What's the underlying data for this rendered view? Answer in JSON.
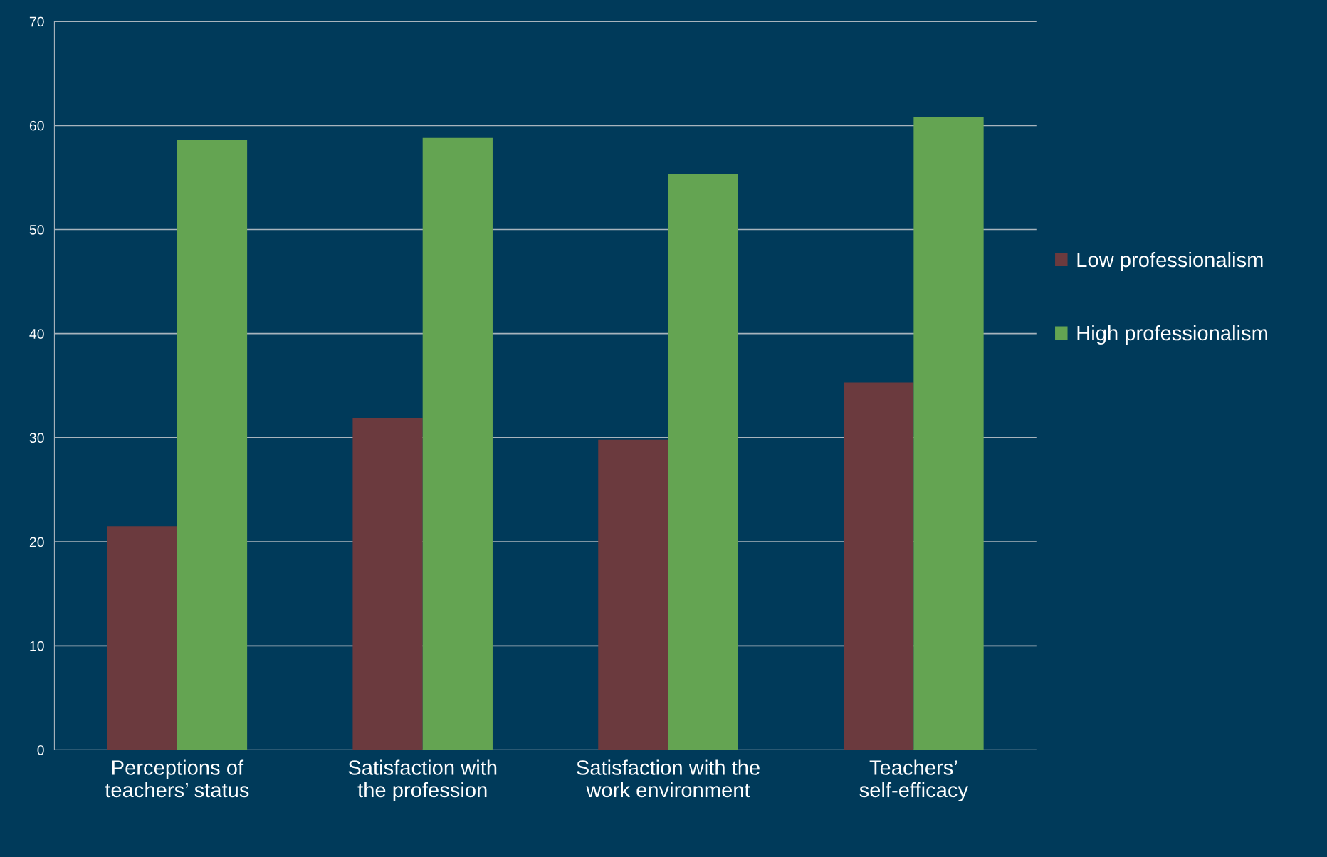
{
  "chart_data": {
    "type": "bar",
    "categories": [
      "Perceptions of\nteachers’ status",
      "Satisfaction with\nthe profession",
      "Satisfaction with the\nwork environment",
      "Teachers’\nself-efficacy"
    ],
    "series": [
      {
        "name": "Low professionalism",
        "color": "#6b3a3e",
        "values": [
          21.5,
          31.9,
          29.8,
          35.3
        ]
      },
      {
        "name": "High professionalism",
        "color": "#64a452",
        "values": [
          58.6,
          58.8,
          55.3,
          60.8
        ]
      }
    ],
    "ylim": [
      0,
      70
    ],
    "yticks": [
      0,
      10,
      20,
      30,
      40,
      50,
      60,
      70
    ],
    "grid": "y",
    "legend": "right"
  }
}
